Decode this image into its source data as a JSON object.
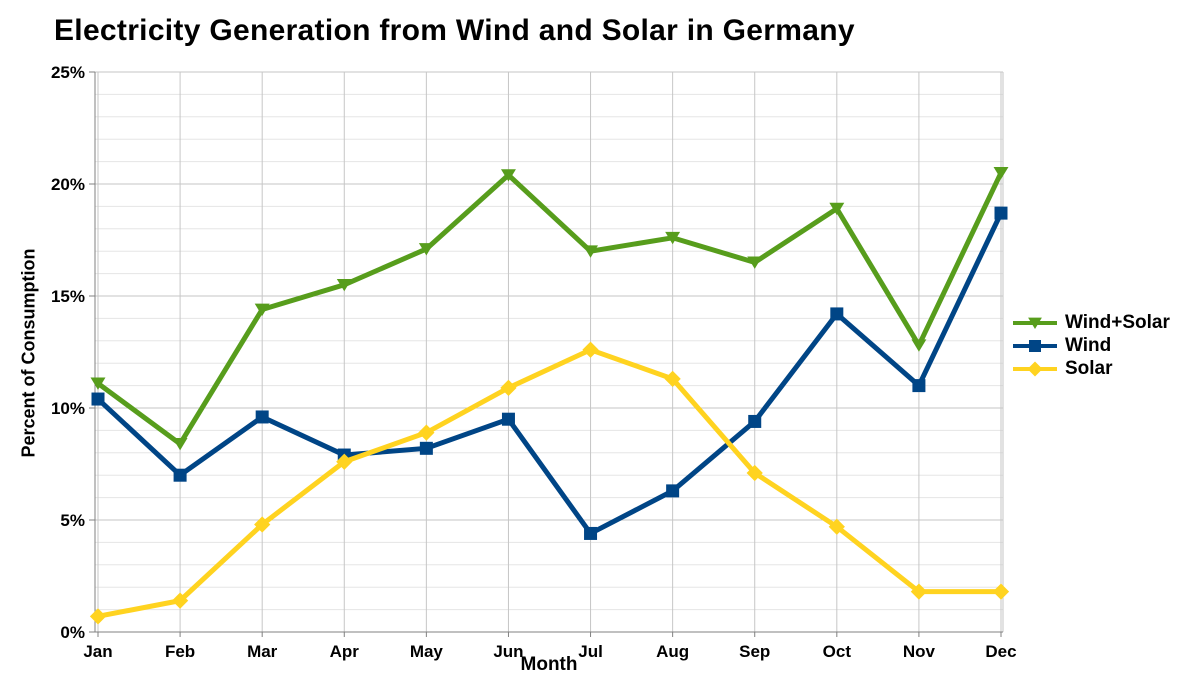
{
  "chart_data": {
    "type": "line",
    "title": "Electricity Generation from Wind and Solar in Germany",
    "xlabel": "Month",
    "ylabel": "Percent of Consumption",
    "categories": [
      "Jan",
      "Feb",
      "Mar",
      "Apr",
      "May",
      "Jun",
      "Jul",
      "Aug",
      "Sep",
      "Oct",
      "Nov",
      "Dec"
    ],
    "y_ticks": [
      "0%",
      "5%",
      "10%",
      "15%",
      "20%",
      "25%"
    ],
    "ylim": [
      0,
      25
    ],
    "y_major_step": 5,
    "y_minor_step": 1,
    "grid": "major and minor horizontal, vertical at each month",
    "legend_position": "right",
    "series": [
      {
        "name": "Wind+Solar",
        "color": "#579D1C",
        "marker": "triangle-down",
        "values": [
          11.1,
          8.4,
          14.4,
          15.5,
          17.1,
          20.4,
          17.0,
          17.6,
          16.5,
          18.9,
          12.8,
          20.5
        ]
      },
      {
        "name": "Wind",
        "color": "#004586",
        "marker": "square",
        "values": [
          10.4,
          7.0,
          9.6,
          7.9,
          8.2,
          9.5,
          4.4,
          6.3,
          9.4,
          14.2,
          11.0,
          18.7
        ]
      },
      {
        "name": "Solar",
        "color": "#FFD320",
        "marker": "diamond",
        "values": [
          0.7,
          1.4,
          4.8,
          7.6,
          8.9,
          10.9,
          12.6,
          11.3,
          7.1,
          4.7,
          1.8,
          1.8
        ]
      }
    ]
  }
}
